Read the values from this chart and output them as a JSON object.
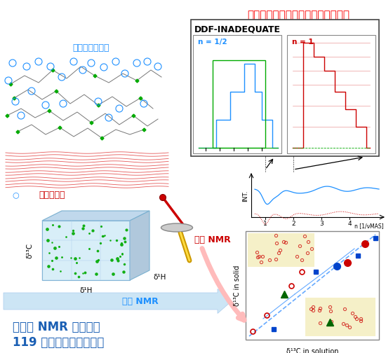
{
  "title_top": "物性の違いを利用してシグナル分離",
  "title_top_color": "#ff0000",
  "label_hemicellulose": "ヘミセルロース",
  "label_cellulose": "セルロース",
  "label_solid_nmr": "固体 NMR",
  "label_liquid_nmr": "溶液 NMR",
  "label_ddf": "DDF-INADEQUATE",
  "label_n_half": "n = 1/2",
  "label_n_one": "n = 1",
  "label_bottom1": "多次元 NMR 法を駆使",
  "label_bottom2": "119 シグナルを同定！！",
  "label_d13C_solid": "δ¹³C in solid",
  "label_d13C_solution": "δ¹³C in solution",
  "label_int": "INT.",
  "label_n_axis": "n [1/νMAS]",
  "label_d13C": "δ¹³C",
  "label_d1H_x": "δ¹H",
  "label_d1H_z": "δ¹H",
  "blue_color": "#1e90ff",
  "red_color": "#cc0000",
  "dark_blue": "#0044cc",
  "bottom_text_color": "#1a5fb4",
  "green_color": "#007700",
  "bg_color": "#ffffff"
}
